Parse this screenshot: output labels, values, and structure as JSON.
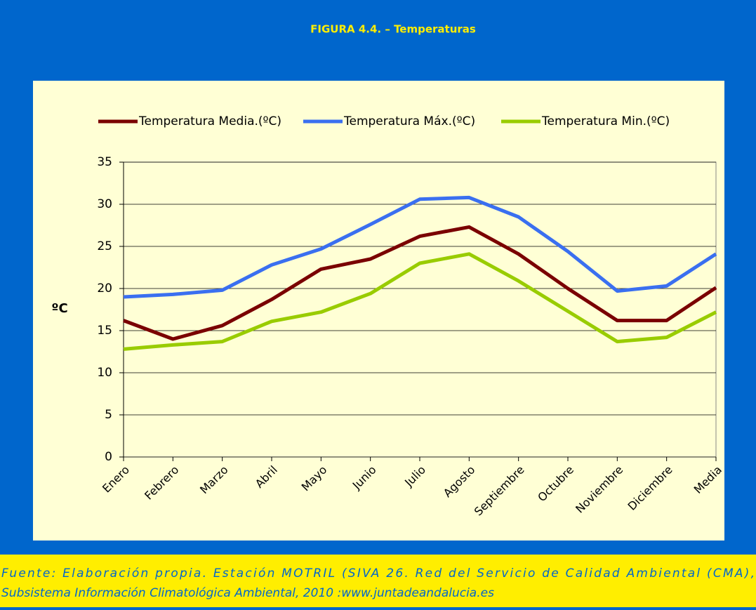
{
  "figure_title": "FIGURA 4.4. – Temperaturas",
  "chart_data": {
    "type": "line",
    "ylabel": "ºC",
    "categories": [
      "Enero",
      "Febrero",
      "Marzo",
      "Abril",
      "Mayo",
      "Junio",
      "Julio",
      "Agosto",
      "Septiembre",
      "Octubre",
      "Noviembre",
      "Diciembre",
      "Media"
    ],
    "series": [
      {
        "name": "Temperatura Media.(ºC)",
        "color": "#7a0000",
        "values": [
          16.2,
          14.0,
          15.6,
          18.7,
          22.3,
          23.5,
          26.2,
          27.3,
          24.1,
          20.0,
          16.2,
          16.2,
          20.1
        ]
      },
      {
        "name": "Temperatura Máx.(ºC)",
        "color": "#3a6ff0",
        "values": [
          19.0,
          19.3,
          19.8,
          22.8,
          24.7,
          27.6,
          30.6,
          30.8,
          28.5,
          24.4,
          19.7,
          20.3,
          24.1
        ]
      },
      {
        "name": "Temperatura Min.(ºC)",
        "color": "#99cc00",
        "values": [
          12.8,
          13.3,
          13.7,
          16.1,
          17.2,
          19.4,
          23.0,
          24.1,
          20.9,
          17.3,
          13.7,
          14.2,
          17.2
        ]
      }
    ],
    "ylim": [
      0,
      35
    ],
    "yticks": [
      0,
      5,
      10,
      15,
      20,
      25,
      30,
      35
    ],
    "grid": true,
    "legend": "top"
  },
  "source": [
    "Fuente: Elaboración propia. Estación MOTRIL (SIVA 26. Red del Servicio de Calidad Ambiental (CMA),",
    "Subsistema Información Climatológica Ambiental, 2010 :www.juntadeandalucia.es"
  ]
}
